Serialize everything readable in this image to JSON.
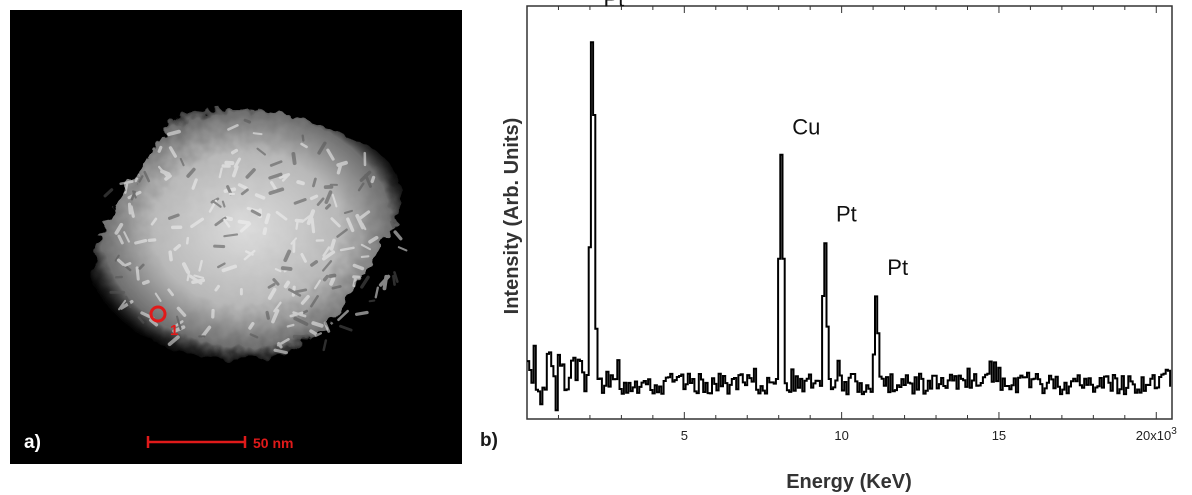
{
  "panel_a": {
    "label": "a)",
    "scale_bar_text": "50 nm",
    "marker_text": "1",
    "colors": {
      "marker": "#e01a1a",
      "background": "#000000"
    }
  },
  "panel_b": {
    "label": "b)"
  },
  "chart_data": {
    "type": "line",
    "title": "",
    "xlabel": "Energy (KeV)",
    "ylabel": "Intensity (Arb. Units)",
    "xlim": [
      0,
      20.5
    ],
    "ylim": [
      0,
      100
    ],
    "grid": false,
    "x_tick_labels": [
      {
        "x": 5,
        "label": "5"
      },
      {
        "x": 10,
        "label": "10"
      },
      {
        "x": 15,
        "label": "15"
      },
      {
        "x": 20,
        "label": "20x10",
        "superscript": "3"
      }
    ],
    "peaks": [
      {
        "element": "Pt",
        "energy": 2.05,
        "intensity": 95
      },
      {
        "element": "Cu",
        "energy": 8.05,
        "intensity": 64
      },
      {
        "element": "Pt",
        "energy": 9.44,
        "intensity": 43
      },
      {
        "element": "Pt",
        "energy": 11.07,
        "intensity": 30
      }
    ],
    "baseline_level": 8,
    "noise_amplitude": 5,
    "line_color": "#000000"
  }
}
